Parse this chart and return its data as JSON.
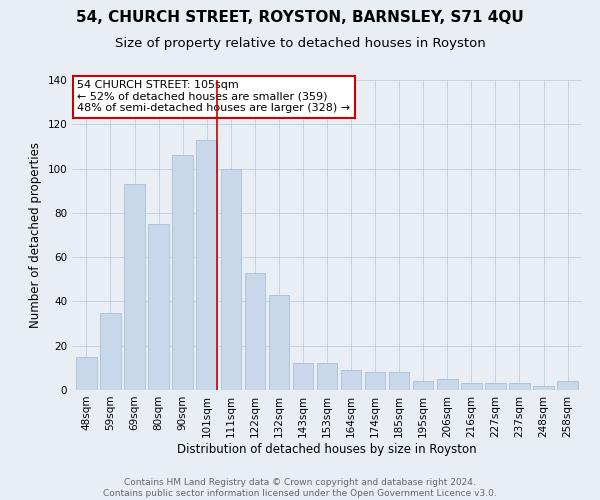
{
  "title": "54, CHURCH STREET, ROYSTON, BARNSLEY, S71 4QU",
  "subtitle": "Size of property relative to detached houses in Royston",
  "xlabel": "Distribution of detached houses by size in Royston",
  "ylabel": "Number of detached properties",
  "categories": [
    "48sqm",
    "59sqm",
    "69sqm",
    "80sqm",
    "90sqm",
    "101sqm",
    "111sqm",
    "122sqm",
    "132sqm",
    "143sqm",
    "153sqm",
    "164sqm",
    "174sqm",
    "185sqm",
    "195sqm",
    "206sqm",
    "216sqm",
    "227sqm",
    "237sqm",
    "248sqm",
    "258sqm"
  ],
  "values": [
    15,
    35,
    93,
    75,
    106,
    113,
    100,
    53,
    43,
    12,
    12,
    9,
    8,
    8,
    4,
    5,
    3,
    3,
    3,
    2,
    4
  ],
  "bar_color": "#c8d8ea",
  "bar_edge_color": "#a8c0d8",
  "highlight_bar_index": 5,
  "highlight_line_color": "#cc0000",
  "ylim": [
    0,
    140
  ],
  "yticks": [
    0,
    20,
    40,
    60,
    80,
    100,
    120,
    140
  ],
  "annotation_title": "54 CHURCH STREET: 105sqm",
  "annotation_line1": "← 52% of detached houses are smaller (359)",
  "annotation_line2": "48% of semi-detached houses are larger (328) →",
  "annotation_box_color": "#ffffff",
  "annotation_box_edge": "#cc0000",
  "footer_line1": "Contains HM Land Registry data © Crown copyright and database right 2024.",
  "footer_line2": "Contains public sector information licensed under the Open Government Licence v3.0.",
  "background_color": "#e8eef4",
  "plot_background_color": "#e8eef4",
  "title_fontsize": 11,
  "subtitle_fontsize": 9.5,
  "axis_label_fontsize": 8.5,
  "tick_fontsize": 7.5,
  "annotation_fontsize": 8,
  "footer_fontsize": 6.5
}
